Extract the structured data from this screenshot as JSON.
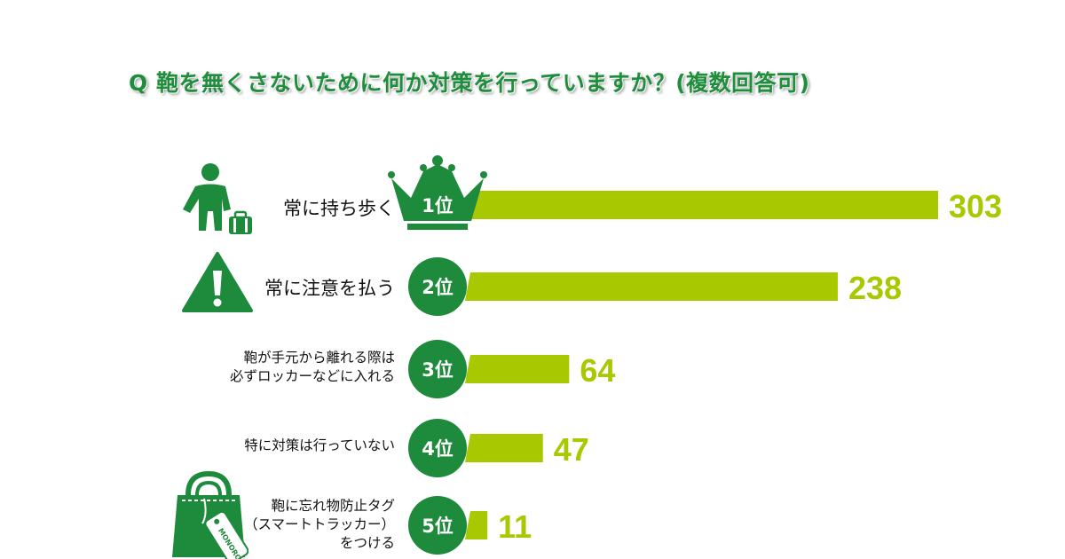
{
  "title": "Q 鞄を無くさないために何か対策を行っていますか？(複数回答可)",
  "colors": {
    "title": "#1f8e3c",
    "badge": "#1e8a3c",
    "bar": "#a8c800",
    "value": "#a8c800",
    "icon": "#1e8a3c"
  },
  "chart_data": {
    "type": "bar",
    "orientation": "horizontal",
    "title": "Q 鞄を無くさないために何か対策を行っていますか？(複数回答可)",
    "categories": [
      "常に持ち歩く",
      "常に注意を払う",
      "鞄が手元から離れる際は 必ずロッカーなどに入れる",
      "特に対策は行っていない",
      "鞄に忘れ物防止タグ （スマートトラッカー） をつける"
    ],
    "values": [
      303,
      238,
      64,
      47,
      11
    ]
  },
  "rows": [
    {
      "rank": "1位",
      "label_lines": [
        "常に持ち歩く"
      ],
      "value": "303",
      "icon": "person-with-luggage-icon"
    },
    {
      "rank": "2位",
      "label_lines": [
        "常に注意を払う"
      ],
      "value": "238",
      "icon": "warning-icon"
    },
    {
      "rank": "3位",
      "label_lines": [
        "鞄が手元から離れる際は",
        "必ずロッカーなどに入れる"
      ],
      "value": "64",
      "icon": ""
    },
    {
      "rank": "4位",
      "label_lines": [
        "特に対策は行っていない"
      ],
      "value": "47",
      "icon": ""
    },
    {
      "rank": "5位",
      "label_lines": [
        "鞄に忘れ物防止タグ",
        "（スマートトラッカー）",
        "をつける"
      ],
      "value": "11",
      "icon": "bag-with-tag-icon"
    }
  ],
  "tag_text": "MONORO"
}
